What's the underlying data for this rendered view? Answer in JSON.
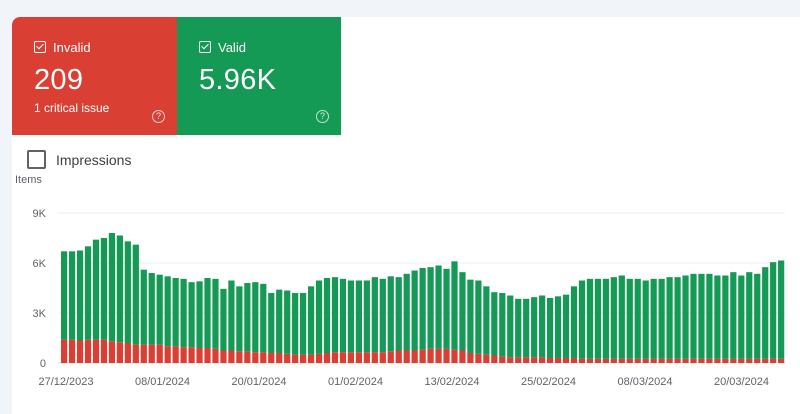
{
  "tiles": {
    "invalid": {
      "label": "Invalid",
      "value": "209",
      "sub": "1 critical issue",
      "color": "#d93f33",
      "help_icon": "?"
    },
    "valid": {
      "label": "Valid",
      "value": "5.96K",
      "color": "#149a55",
      "help_icon": "?"
    }
  },
  "impressions_label": "Impressions",
  "chart_data": {
    "type": "bar",
    "stacked": true,
    "title": "Items",
    "ylim": [
      0,
      9000
    ],
    "y_ticks": [
      "0",
      "3K",
      "6K",
      "9K"
    ],
    "x_tick_labels": [
      "27/12/2023",
      "08/01/2024",
      "20/01/2024",
      "01/02/2024",
      "13/02/2024",
      "25/02/2024",
      "08/03/2024",
      "20/03/2024"
    ],
    "series": [
      {
        "name": "Invalid",
        "color": "#d93f33",
        "values": [
          1400,
          1400,
          1350,
          1400,
          1400,
          1400,
          1300,
          1250,
          1200,
          1100,
          1100,
          1100,
          1100,
          1000,
          1000,
          950,
          950,
          900,
          900,
          850,
          750,
          750,
          700,
          700,
          650,
          650,
          600,
          600,
          550,
          500,
          500,
          500,
          550,
          600,
          650,
          650,
          650,
          650,
          650,
          650,
          650,
          700,
          750,
          750,
          750,
          800,
          850,
          850,
          850,
          800,
          750,
          600,
          550,
          500,
          450,
          400,
          350,
          350,
          350,
          350,
          350,
          300,
          300,
          300,
          300,
          250,
          250,
          250,
          250,
          250,
          250,
          250,
          250,
          250,
          250,
          250,
          250,
          250,
          250,
          250,
          250,
          250,
          250,
          250,
          250,
          250,
          250,
          250,
          250,
          250,
          250
        ]
      },
      {
        "name": "Valid",
        "color": "#149a55",
        "values": [
          5300,
          5300,
          5400,
          5600,
          6000,
          6100,
          6500,
          6400,
          6100,
          6000,
          4500,
          4300,
          4200,
          4200,
          4100,
          4100,
          3900,
          4000,
          4200,
          4200,
          3700,
          4200,
          3900,
          4100,
          4200,
          4100,
          3600,
          3800,
          3800,
          3700,
          3700,
          4100,
          4400,
          4500,
          4500,
          4400,
          4300,
          4300,
          4300,
          4500,
          4400,
          4500,
          4400,
          4600,
          4800,
          4900,
          4900,
          5000,
          4800,
          5300,
          4700,
          4400,
          4400,
          4100,
          3800,
          3800,
          3700,
          3500,
          3500,
          3600,
          3700,
          3600,
          3700,
          3800,
          4300,
          4700,
          4800,
          4800,
          4800,
          4900,
          5000,
          4800,
          4800,
          4700,
          4800,
          4800,
          4900,
          4900,
          5000,
          5100,
          5100,
          5100,
          5000,
          5000,
          5200,
          5000,
          5200,
          5100,
          5500,
          5800,
          5900
        ]
      }
    ]
  }
}
